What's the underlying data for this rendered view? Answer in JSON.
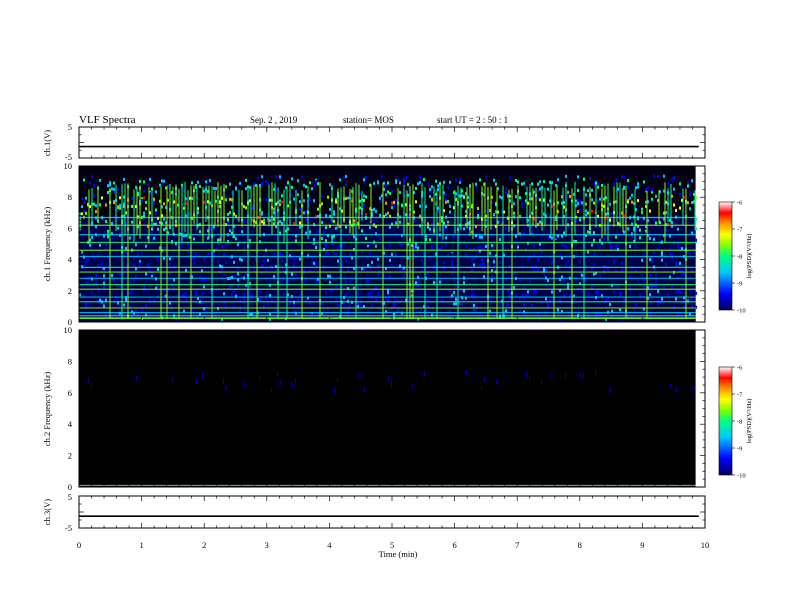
{
  "header": {
    "title": "VLF Spectra",
    "date": "Sep. 2 , 2019",
    "station": "station= MOS",
    "start_ut": "start  UT =   2 : 50 : 1"
  },
  "chart_data": [
    {
      "type": "line",
      "panel": "ch.1 voltage",
      "ylabel": "ch.1(V)",
      "ylim": [
        -5,
        5
      ],
      "yticks": [
        "5",
        "-5"
      ],
      "series": [
        {
          "x": [
            0,
            9.9
          ],
          "values": [
            -1.3,
            -1.3
          ]
        }
      ],
      "line_color": "#000000"
    },
    {
      "type": "heatmap",
      "panel": "ch.1 spectrogram",
      "ylabel": "ch.1 Frequency (kHz)",
      "ylim": [
        0,
        10
      ],
      "xlim": [
        0,
        10
      ],
      "data_xmax": 9.85,
      "yticks": [
        "0",
        "2",
        "4",
        "6",
        "8",
        "10"
      ],
      "emission_band_khz": [
        5.0,
        9.0
      ],
      "strong_band_khz": [
        6.0,
        8.0
      ],
      "horizontal_lines_khz": [
        0.4,
        0.6,
        0.9,
        1.3,
        1.6,
        2.1,
        2.4,
        2.8,
        3.2,
        3.5,
        4.2,
        4.6,
        5.1,
        5.6,
        6.2,
        6.7
      ],
      "colorbar": {
        "label": "log(PSD)(V²/Hz)",
        "ticks": [
          "-6",
          "-7",
          "-8",
          "-9",
          "-10"
        ]
      }
    },
    {
      "type": "heatmap",
      "panel": "ch.2 spectrogram",
      "ylabel": "ch.2 Frequency (kHz)",
      "ylim": [
        0,
        10
      ],
      "xlim": [
        0,
        10
      ],
      "data_xmax": 9.85,
      "yticks": [
        "0",
        "2",
        "4",
        "6",
        "8",
        "10"
      ],
      "colorbar": {
        "label": "log(PSD)(V²/Hz)",
        "ticks": [
          "-6",
          "-7",
          "-8",
          "-9",
          "-10"
        ]
      }
    },
    {
      "type": "line",
      "panel": "ch.3 voltage",
      "ylabel": "ch.3(V)",
      "ylim": [
        -5,
        5
      ],
      "yticks": [
        "5",
        "-5"
      ],
      "series": [
        {
          "x": [
            0,
            9.9
          ],
          "values": [
            -1.3,
            -1.3
          ]
        }
      ],
      "line_color": "#000000"
    }
  ],
  "x_axis": {
    "label": "Time  (min)",
    "ticks": [
      "0",
      "1",
      "2",
      "3",
      "4",
      "5",
      "6",
      "7",
      "8",
      "9",
      "10"
    ],
    "range": [
      0,
      10
    ]
  },
  "colormap": [
    "#00005a",
    "#0000ff",
    "#00c8ff",
    "#00ff80",
    "#80ff00",
    "#ffff00",
    "#ff9600",
    "#ff0000",
    "#ffffff"
  ]
}
